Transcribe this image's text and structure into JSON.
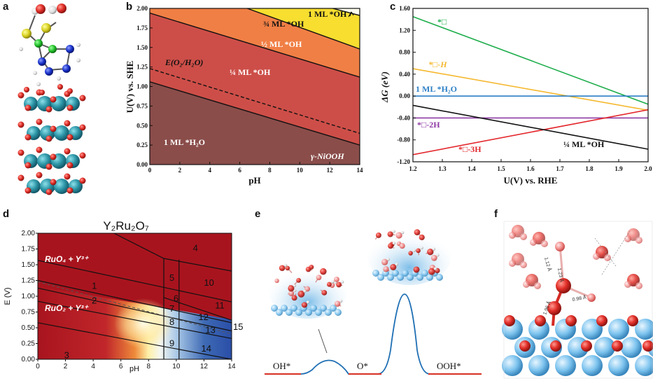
{
  "panel_labels": [
    "a",
    "b",
    "c",
    "d",
    "e",
    "f"
  ],
  "chart_data": [
    {
      "id": "b",
      "type": "area",
      "xlabel": "pH",
      "ylabel": "U(V) vs. SHE",
      "xlim": [
        0,
        14
      ],
      "ylim": [
        0,
        2.0
      ],
      "xticks": [
        0,
        2,
        4,
        6,
        8,
        10,
        12,
        14
      ],
      "yticks": [
        0.0,
        0.25,
        0.5,
        0.75,
        1.0,
        1.25,
        1.5,
        1.75,
        2.0
      ],
      "ytick_labels": [
        "0.00",
        "0.25",
        "0.50",
        "0.75",
        "1.00",
        "1.25",
        "1.50",
        "1.75",
        "2.00"
      ],
      "boundaries": [
        {
          "name": "H2O/OH quarter",
          "x": [
            0,
            14
          ],
          "y": [
            1.06,
            0.25
          ]
        },
        {
          "name": "O2/H2O",
          "x": [
            0,
            14
          ],
          "y": [
            1.23,
            0.4
          ],
          "style": "dashed"
        },
        {
          "name": "quarter/half",
          "x": [
            0,
            14
          ],
          "y": [
            1.94,
            1.12
          ]
        },
        {
          "name": "half/three-quarter",
          "x": [
            6.5,
            14
          ],
          "y": [
            2.0,
            1.48
          ]
        },
        {
          "name": "three-quarter/full",
          "x": [
            12.2,
            14
          ],
          "y": [
            2.0,
            1.91
          ]
        }
      ],
      "regions": [
        {
          "label": "1 ML *H₂O",
          "color": "#8a4d4a"
        },
        {
          "label": "¼ ML *OH",
          "color": "#cd4e48"
        },
        {
          "label": "½ ML *OH",
          "color": "#f07f45"
        },
        {
          "label": "¾ ML *OH",
          "color": "#f7de2f"
        },
        {
          "label": "1 ML *OH",
          "color": "#fffff0"
        }
      ],
      "annotations": [
        "E(O₂/H₂O)",
        "γ-NiOOH"
      ]
    },
    {
      "id": "c",
      "type": "line",
      "xlabel": "U(V) vs. RHE",
      "ylabel": "ΔG (eV)",
      "xlim": [
        1.2,
        2.0
      ],
      "ylim": [
        -1.2,
        1.6
      ],
      "xticks": [
        1.2,
        1.3,
        1.4,
        1.5,
        1.6,
        1.7,
        1.8,
        1.9,
        2.0
      ],
      "xtick_labels": [
        "1.2",
        "1.3",
        "1.4",
        "1.5",
        "1.6",
        "1.7",
        "1.8",
        "1.9",
        "2.0"
      ],
      "yticks": [
        -1.2,
        -0.8,
        -0.4,
        0.0,
        0.4,
        0.8,
        1.2,
        1.6
      ],
      "ytick_labels": [
        "-1.20",
        "-0.80",
        "-0.40",
        "0.00",
        "0.40",
        "0.80",
        "1.20",
        "1.60"
      ],
      "series": [
        {
          "name": "*□",
          "color": "#1fae4c",
          "x": [
            1.2,
            2.0
          ],
          "y": [
            1.45,
            -0.15
          ]
        },
        {
          "name": "*□-H",
          "color": "#f5b82e",
          "x": [
            1.2,
            2.0
          ],
          "y": [
            0.5,
            -0.26
          ]
        },
        {
          "name": "1 ML *H₂O",
          "color": "#2c7fc6",
          "x": [
            1.2,
            2.0
          ],
          "y": [
            0.0,
            0.0
          ]
        },
        {
          "name": "*□-2H",
          "color": "#8e3aa4",
          "x": [
            1.2,
            2.0
          ],
          "y": [
            -0.4,
            -0.4
          ]
        },
        {
          "name": "*□-3H",
          "color": "#e3282d",
          "x": [
            1.2,
            2.0
          ],
          "y": [
            -1.07,
            -0.25
          ]
        },
        {
          "name": "¼ ML *OH",
          "color": "#111111",
          "x": [
            1.2,
            2.0
          ],
          "y": [
            -0.17,
            -0.97
          ]
        }
      ]
    },
    {
      "id": "d",
      "type": "heatmap",
      "title": "Y₂Ru₂O₇",
      "xlabel": "pH",
      "ylabel": "E (V)",
      "xlim": [
        0,
        14
      ],
      "ylim": [
        0,
        2.0
      ],
      "xticks": [
        0,
        2,
        4,
        6,
        8,
        10,
        12,
        14
      ],
      "yticks": [
        0.0,
        0.25,
        0.5,
        0.75,
        1.0,
        1.25,
        1.5,
        1.75,
        2.0
      ],
      "ytick_labels": [
        "0.00",
        "0.25",
        "0.50",
        "0.75",
        "1.00",
        "1.25",
        "1.50",
        "1.75",
        "2.00"
      ],
      "region_labels": [
        "RuO₄ + Y³⁺",
        "RuO₂ + Y³⁺",
        "1",
        "2",
        "3",
        "4",
        "5",
        "6",
        "7",
        "8",
        "9",
        "10",
        "11",
        "12",
        "13",
        "14",
        "15"
      ]
    },
    {
      "id": "e",
      "type": "line",
      "labels": [
        "OH*",
        "O*",
        "OOH*"
      ]
    },
    {
      "id": "f",
      "type": "other",
      "bond_labels": [
        "1.12 Å",
        "1.23 Å",
        "0.98 Å",
        "1.96 Å"
      ]
    }
  ]
}
